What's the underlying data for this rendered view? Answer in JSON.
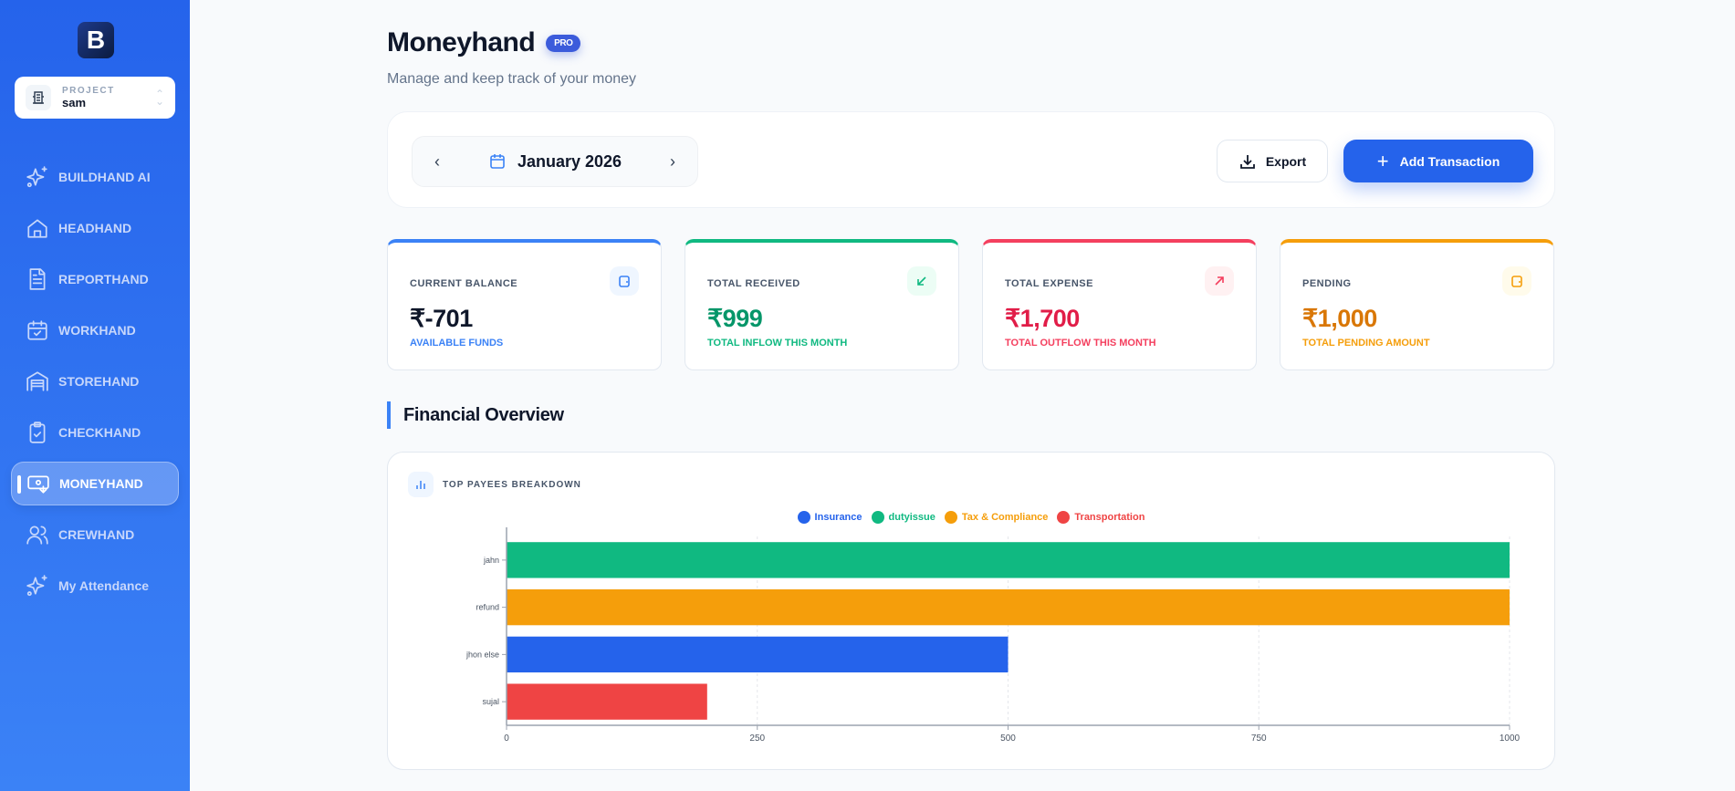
{
  "sidebar": {
    "logo_letter": "B",
    "project": {
      "label": "PROJECT",
      "value": "sam"
    },
    "items": [
      {
        "label": "BUILDHAND AI",
        "icon": "sparkles-icon"
      },
      {
        "label": "HEADHAND",
        "icon": "home-icon"
      },
      {
        "label": "REPORTHAND",
        "icon": "document-icon"
      },
      {
        "label": "WORKHAND",
        "icon": "calendar-check-icon"
      },
      {
        "label": "STOREHAND",
        "icon": "warehouse-icon"
      },
      {
        "label": "CHECKHAND",
        "icon": "clipboard-check-icon"
      },
      {
        "label": "MONEYHAND",
        "icon": "money-icon",
        "active": true
      },
      {
        "label": "CREWHAND",
        "icon": "users-icon"
      },
      {
        "label": "My Attendance",
        "icon": "sparkles-icon"
      }
    ]
  },
  "header": {
    "title": "Moneyhand",
    "badge": "PRO",
    "subtitle": "Manage and keep track of your money"
  },
  "toolbar": {
    "month": "January 2026",
    "export_label": "Export",
    "add_label": "Add Transaction"
  },
  "stats": [
    {
      "label": "CURRENT BALANCE",
      "value": "₹-701",
      "sub": "AVAILABLE FUNDS",
      "color": "#3b82f6",
      "value_color": "#0f172a",
      "icon": "wallet-icon"
    },
    {
      "label": "TOTAL RECEIVED",
      "value": "₹999",
      "sub": "TOTAL INFLOW THIS MONTH",
      "color": "#10b981",
      "value_color": "#059669",
      "icon": "arrow-down-left-icon"
    },
    {
      "label": "TOTAL EXPENSE",
      "value": "₹1,700",
      "sub": "TOTAL OUTFLOW THIS MONTH",
      "color": "#f43f5e",
      "value_color": "#e11d48",
      "icon": "arrow-up-right-icon"
    },
    {
      "label": "PENDING",
      "value": "₹1,000",
      "sub": "TOTAL PENDING AMOUNT",
      "color": "#f59e0b",
      "value_color": "#d97706",
      "icon": "wallet-icon"
    }
  ],
  "section_title": "Financial Overview",
  "chart_title": "TOP PAYEES BREAKDOWN",
  "chart_data": {
    "type": "bar",
    "orientation": "horizontal",
    "categories": [
      "jahn",
      "refund",
      "jhon else",
      "sujal"
    ],
    "values": [
      1000,
      1000,
      500,
      200
    ],
    "bar_series": [
      "dutyissue",
      "Tax & Compliance",
      "Insurance",
      "Transportation"
    ],
    "legend": [
      {
        "name": "Insurance",
        "color": "#2563eb"
      },
      {
        "name": "dutyissue",
        "color": "#10b981"
      },
      {
        "name": "Tax & Compliance",
        "color": "#f59e0b"
      },
      {
        "name": "Transportation",
        "color": "#ef4444"
      }
    ],
    "xlim": [
      0,
      1000
    ],
    "xticks": [
      "0",
      "250",
      "500",
      "750",
      "1000"
    ],
    "grid": true,
    "legend_position": "top"
  }
}
